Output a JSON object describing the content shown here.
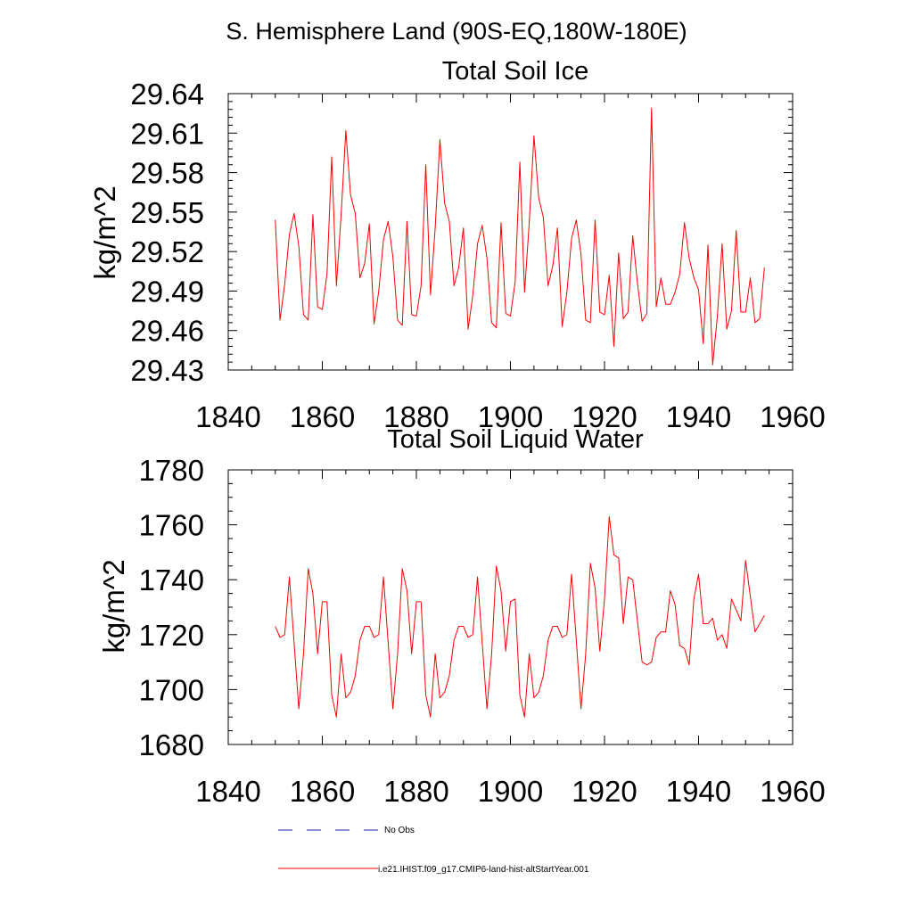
{
  "page_title": "S. Hemisphere Land (90S-EQ,180W-180E)",
  "legend": [
    {
      "label": "No Obs",
      "color": "#1a1aa0",
      "style": "dashed"
    },
    {
      "label": "i.e21.IHIST.f09_g17.CMIP6-land-hist-altStartYear.001",
      "color": "#ff0000",
      "style": "solid"
    }
  ],
  "chart_data": [
    {
      "type": "line",
      "title": "Total Soil Ice",
      "ylabel": "kg/m^2",
      "xlabel": "",
      "xlim": [
        1840,
        1960
      ],
      "ylim": [
        29.43,
        29.64
      ],
      "x_ticks": [
        "1840",
        "1860",
        "1880",
        "1900",
        "1920",
        "1940",
        "1960"
      ],
      "y_ticks": [
        "29.43",
        "29.46",
        "29.49",
        "29.52",
        "29.55",
        "29.58",
        "29.61",
        "29.64"
      ],
      "x_start": 1850,
      "series": [
        {
          "color": "#ff0000",
          "values": [
            29.544,
            29.468,
            29.495,
            29.533,
            29.549,
            29.524,
            29.472,
            29.468,
            29.548,
            29.478,
            29.476,
            29.503,
            29.592,
            29.494,
            29.548,
            29.612,
            29.563,
            29.549,
            29.5,
            29.511,
            29.541,
            29.465,
            29.49,
            29.529,
            29.543,
            29.516,
            29.468,
            29.464,
            29.543,
            29.472,
            29.471,
            29.494,
            29.586,
            29.487,
            29.538,
            29.605,
            29.557,
            29.543,
            29.494,
            29.508,
            29.538,
            29.461,
            29.487,
            29.526,
            29.54,
            29.515,
            29.466,
            29.462,
            29.542,
            29.473,
            29.471,
            29.497,
            29.588,
            29.489,
            29.542,
            29.608,
            29.561,
            29.546,
            29.494,
            29.509,
            29.538,
            29.463,
            29.489,
            29.53,
            29.544,
            29.518,
            29.468,
            29.466,
            29.544,
            29.474,
            29.472,
            29.502,
            29.448,
            29.519,
            29.469,
            29.474,
            29.532,
            29.496,
            29.467,
            29.473,
            29.629,
            29.478,
            29.5,
            29.48,
            29.48,
            29.489,
            29.503,
            29.542,
            29.515,
            29.5,
            29.491,
            29.45,
            29.525,
            29.434,
            29.471,
            29.526,
            29.461,
            29.475,
            29.536,
            29.474,
            29.474,
            29.5,
            29.466,
            29.469,
            29.508
          ]
        }
      ]
    },
    {
      "type": "line",
      "title": "Total Soil Liquid Water",
      "ylabel": "kg/m^2",
      "xlabel": "",
      "xlim": [
        1840,
        1960
      ],
      "ylim": [
        1680,
        1780
      ],
      "x_ticks": [
        "1840",
        "1860",
        "1880",
        "1900",
        "1920",
        "1940",
        "1960"
      ],
      "y_ticks": [
        "1680",
        "1700",
        "1720",
        "1740",
        "1760",
        "1780"
      ],
      "x_start": 1850,
      "series": [
        {
          "color": "#ff0000",
          "values": [
            1723,
            1719,
            1720,
            1741,
            1717,
            1693,
            1713,
            1744,
            1735,
            1713,
            1732,
            1732,
            1698,
            1690,
            1713,
            1697,
            1699,
            1705,
            1718,
            1723,
            1723,
            1719,
            1720,
            1741,
            1717,
            1693,
            1713,
            1744,
            1736,
            1713,
            1732,
            1732,
            1698,
            1690,
            1713,
            1697,
            1699,
            1705,
            1718,
            1723,
            1723,
            1719,
            1720,
            1741,
            1717,
            1693,
            1713,
            1745,
            1736,
            1714,
            1732,
            1733,
            1698,
            1690,
            1713,
            1697,
            1699,
            1705,
            1718,
            1723,
            1723,
            1719,
            1720,
            1742,
            1718,
            1693,
            1713,
            1746,
            1737,
            1714,
            1733,
            1763,
            1749,
            1748,
            1724,
            1741,
            1740,
            1725,
            1710,
            1709,
            1710,
            1719,
            1721,
            1721,
            1736,
            1731,
            1716,
            1715,
            1709,
            1733,
            1742,
            1724,
            1724,
            1726,
            1718,
            1720,
            1715,
            1733,
            1729,
            1725,
            1747,
            1734,
            1721,
            1724,
            1727
          ]
        }
      ]
    }
  ]
}
